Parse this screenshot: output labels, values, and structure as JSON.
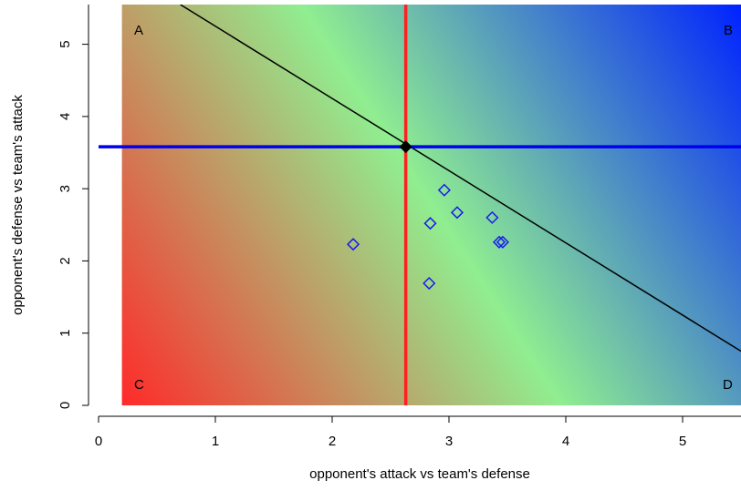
{
  "chart_data": {
    "type": "scatter",
    "title": "",
    "xlabel": "opponent's attack vs team's defense",
    "ylabel": "opponent's defense vs team's attack",
    "xlim": [
      0,
      5.5
    ],
    "ylim": [
      0,
      5.55
    ],
    "xticks": [
      "0",
      "1",
      "2",
      "3",
      "4",
      "5"
    ],
    "yticks": [
      "0",
      "1",
      "2",
      "3",
      "4",
      "5"
    ],
    "grid": false,
    "background_gradient": {
      "x_start": 0.2,
      "colors": {
        "low": "#ff2a2a",
        "mid": "#90ee90",
        "high": "#0022ff"
      }
    },
    "corner_labels": [
      {
        "text": "A",
        "corner": "top-left"
      },
      {
        "text": "B",
        "corner": "top-right"
      },
      {
        "text": "C",
        "corner": "bottom-left"
      },
      {
        "text": "D",
        "corner": "bottom-right"
      }
    ],
    "vertical_line": {
      "x": 2.63,
      "color": "#ff2020"
    },
    "horizontal_line": {
      "y": 3.58,
      "color": "#0000ee"
    },
    "diagonal_line": {
      "points": [
        [
          0.7,
          5.55
        ],
        [
          5.5,
          0.75
        ]
      ],
      "color": "#000000"
    },
    "center_point": {
      "x": 2.63,
      "y": 3.58,
      "marker": "filled-diamond",
      "color": "#000000"
    },
    "series": [
      {
        "marker": "open-diamond",
        "color": "#1a1aee",
        "points": [
          {
            "x": 2.18,
            "y": 2.23
          },
          {
            "x": 2.84,
            "y": 2.52
          },
          {
            "x": 2.96,
            "y": 2.98
          },
          {
            "x": 3.07,
            "y": 2.67
          },
          {
            "x": 3.37,
            "y": 2.6
          },
          {
            "x": 3.43,
            "y": 2.26
          },
          {
            "x": 3.46,
            "y": 2.26
          },
          {
            "x": 2.83,
            "y": 1.69
          }
        ]
      }
    ]
  }
}
